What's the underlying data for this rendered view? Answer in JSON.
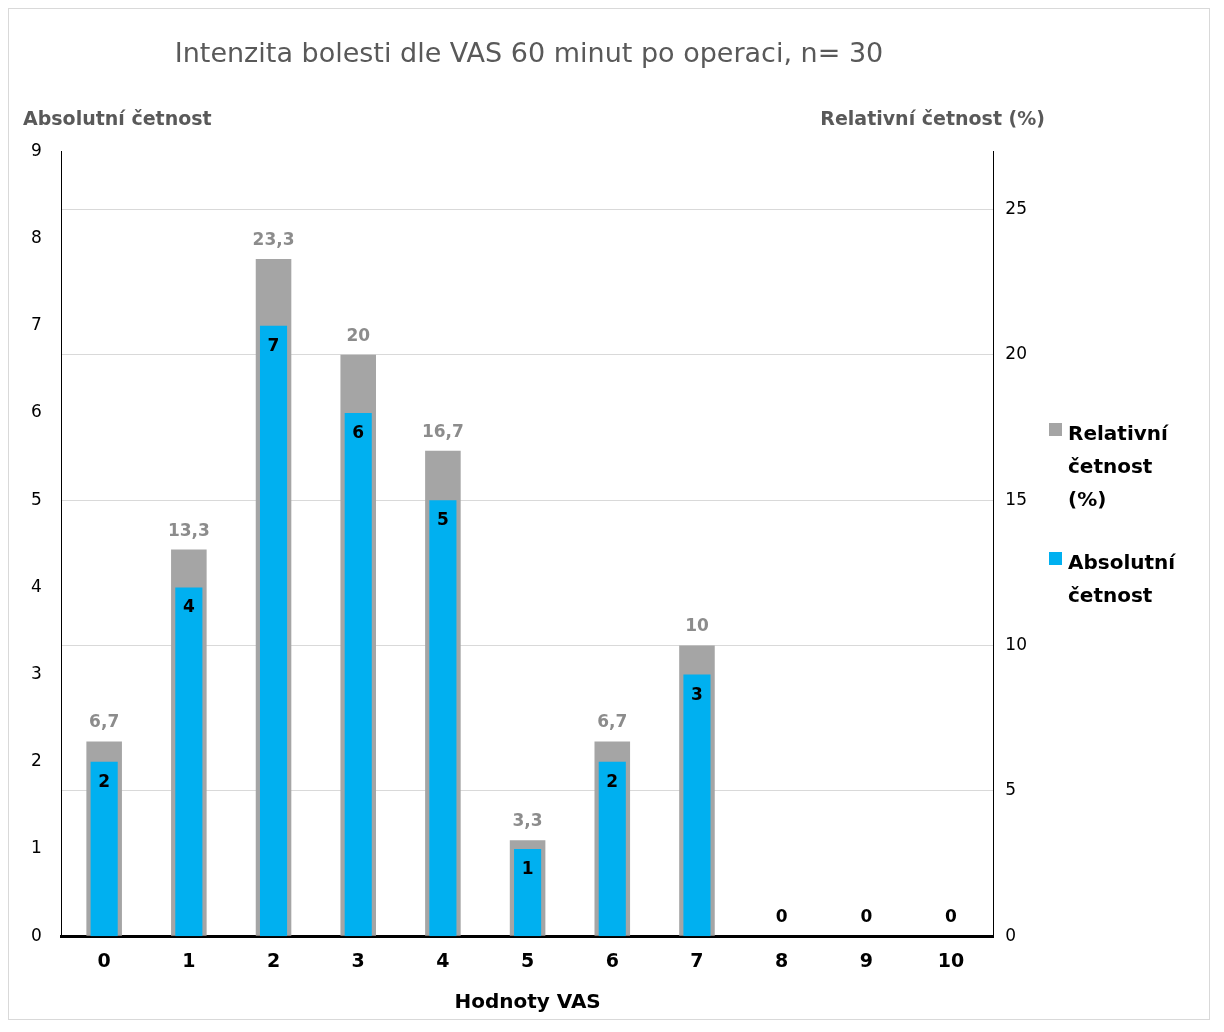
{
  "chart_data": {
    "type": "bar",
    "title": "Intenzita bolesti dle VAS 60 minut po operaci, n= 30",
    "xlabel": "Hodnoty VAS",
    "ylabel": "Absolutní četnost",
    "y2label": "Relativní četnost (%)",
    "categories": [
      "0",
      "1",
      "2",
      "3",
      "4",
      "5",
      "6",
      "7",
      "8",
      "9",
      "10"
    ],
    "series": [
      {
        "name": "Relativní četnost (%)",
        "color": "#a5a5a5",
        "axis": "y2",
        "values": [
          6.7,
          13.3,
          23.3,
          20,
          16.7,
          3.3,
          6.7,
          10,
          0,
          0,
          0
        ],
        "value_labels": [
          "6,7",
          "13,3",
          "23,3",
          "20",
          "16,7",
          "3,3",
          "6,7",
          "10",
          null,
          null,
          null
        ]
      },
      {
        "name": "Absolutní četnost",
        "color": "#00b0f0",
        "axis": "y",
        "values": [
          2,
          4,
          7,
          6,
          5,
          1,
          2,
          3,
          0,
          0,
          0
        ],
        "value_labels": [
          "2",
          "4",
          "7",
          "6",
          "5",
          "1",
          "2",
          "3",
          "0",
          "0",
          "0"
        ]
      }
    ],
    "ylim": [
      0,
      9
    ],
    "yticks": [
      0,
      1,
      2,
      3,
      4,
      5,
      6,
      7,
      8,
      9
    ],
    "y2lim": [
      0,
      27
    ],
    "y2ticks": [
      0,
      5,
      10,
      15,
      20,
      25
    ],
    "grid": "y",
    "legend": "right"
  }
}
